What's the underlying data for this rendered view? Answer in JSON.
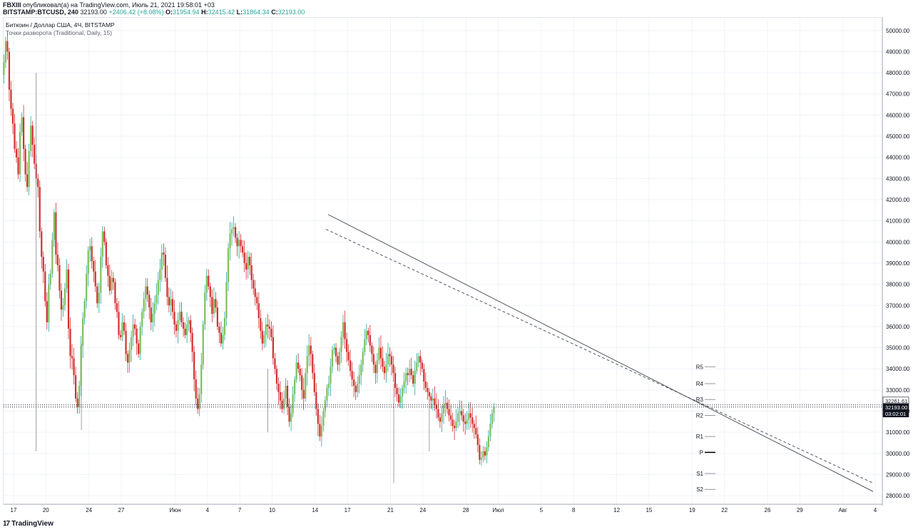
{
  "header": {
    "author": "FBXIII",
    "published_text": "опубликовал(а) на TradingView.com, Июль 21, 2021 19:58:01 +03",
    "symbol": "BITSTAMP:BTCUSD, 240",
    "last": "32193.00",
    "change": "+2406.42 (+8.08%)",
    "o_label": "O:",
    "o_value": "31954.94",
    "h_label": "H:",
    "h_value": "32415.42",
    "l_label": "L:",
    "l_value": "31864.34",
    "c_label": "C:",
    "c_value": "32193.00"
  },
  "legend": {
    "title": "Биткоин / Доллар США, 4Ч, BITSTAMP",
    "indicator": "Точки разворота (Traditional, Daily, 15)"
  },
  "footer": {
    "brand": "TradingView",
    "logo_glyph": "17"
  },
  "colors": {
    "up": "#26a69a",
    "up_body": "#7cbf5a",
    "down": "#d32f2f",
    "grid": "#f0f3fa",
    "line": "#131722"
  },
  "chart_data": {
    "type": "candlestick",
    "title": "Биткоин / Доллар США, 4Ч, BITSTAMP",
    "ylim": [
      27600,
      50600
    ],
    "y_ticks": [
      28000,
      29000,
      30000,
      31000,
      32000,
      33000,
      34000,
      35000,
      36000,
      37000,
      38000,
      39000,
      40000,
      41000,
      42000,
      43000,
      44000,
      45000,
      46000,
      47000,
      48000,
      49000,
      50000
    ],
    "y_tick_labels": [
      "28000.00",
      "29000.00",
      "30000.00",
      "31000.00",
      "32000.00",
      "33000.00",
      "34000.00",
      "35000.00",
      "36000.00",
      "37000.00",
      "38000.00",
      "39000.00",
      "40000.00",
      "41000.00",
      "42000.00",
      "43000.00",
      "44000.00",
      "45000.00",
      "46000.00",
      "47000.00",
      "48000.00",
      "49000.00",
      "50000.00"
    ],
    "x_ticks": [
      "17",
      "20",
      "24",
      "27",
      "Июн",
      "4",
      "7",
      "10",
      "14",
      "17",
      "21",
      "24",
      "28",
      "Июл",
      "5",
      "8",
      "12",
      "15",
      "19",
      "22",
      "26",
      "29",
      "Авг",
      "4"
    ],
    "x_tick_days": [
      0,
      3,
      7,
      10,
      15,
      18,
      21,
      24,
      28,
      31,
      35,
      38,
      42,
      45,
      49,
      52,
      56,
      59,
      63,
      66,
      70,
      73,
      77,
      80
    ],
    "last_price_label": "32193.00",
    "high_marker_label": "32261.61",
    "countdown_label": "03:02:01",
    "price_line": 32193,
    "pivots": [
      {
        "name": "R5",
        "value": 34100
      },
      {
        "name": "R4",
        "value": 33300
      },
      {
        "name": "R3",
        "value": 32550
      },
      {
        "name": "R2",
        "value": 31800
      },
      {
        "name": "R1",
        "value": 30800
      },
      {
        "name": "P",
        "value": 30050
      },
      {
        "name": "S1",
        "value": 29050
      },
      {
        "name": "S2",
        "value": 28300
      }
    ],
    "trendlines": [
      {
        "style": "solid",
        "from": {
          "day": 29.2,
          "price": 41300
        },
        "to": {
          "day": 79.8,
          "price": 28200
        }
      },
      {
        "style": "dashed",
        "from": {
          "day": 29.0,
          "price": 40600
        },
        "to": {
          "day": 79.8,
          "price": 28600
        }
      }
    ],
    "candles_start_day": -0.9,
    "candles_per_day": 6,
    "closes": [
      48500,
      49500,
      49000,
      47200,
      46300,
      45600,
      44400,
      44000,
      43200,
      45200,
      45900,
      44400,
      43200,
      42600,
      44300,
      45500,
      44600,
      43700,
      43000,
      42600,
      40500,
      39300,
      38600,
      37200,
      36200,
      38000,
      38500,
      40100,
      41400,
      39400,
      38900,
      37700,
      36800,
      37000,
      37800,
      38700,
      35900,
      34600,
      34500,
      33700,
      32600,
      32200,
      33200,
      35100,
      36400,
      37200,
      38500,
      39600,
      39800,
      39100,
      38600,
      37900,
      37100,
      37600,
      39300,
      40500,
      40000,
      38900,
      38400,
      37700,
      38300,
      38100,
      37100,
      36700,
      35600,
      35500,
      36200,
      35800,
      34700,
      34300,
      34900,
      35500,
      36100,
      35900,
      35200,
      34700,
      36000,
      36700,
      37300,
      37900,
      37500,
      36900,
      36200,
      36600,
      37100,
      37500,
      38200,
      38700,
      39500,
      39400,
      38300,
      37400,
      37000,
      37300,
      36700,
      36100,
      35800,
      36300,
      36700,
      36200,
      35900,
      35600,
      36100,
      36300,
      35700,
      34800,
      33500,
      32600,
      32100,
      32800,
      34200,
      36100,
      37600,
      38400,
      37900,
      37400,
      36600,
      37300,
      36900,
      36000,
      35700,
      35200,
      35600,
      36400,
      38100,
      39700,
      40400,
      40600,
      40700,
      40200,
      39800,
      40100,
      39800,
      39500,
      39000,
      38700,
      39300,
      38900,
      38200,
      37800,
      37400,
      37100,
      36400,
      35800,
      35200,
      35600,
      36100,
      36000,
      35900,
      35500,
      34500,
      34000,
      33300,
      32900,
      32500,
      32100,
      32600,
      33200,
      32200,
      31500,
      31900,
      32800,
      33500,
      34300,
      34000,
      33700,
      33000,
      32600,
      33800,
      34600,
      35100,
      34700,
      33800,
      32900,
      32100,
      31400,
      30800,
      31300,
      32000,
      32500,
      33100,
      33300,
      34100,
      34900,
      35000,
      34600,
      34200,
      34800,
      35500,
      36200,
      35400,
      34800,
      34400,
      33900,
      33500,
      33200,
      32900,
      33300,
      33700,
      34200,
      34800,
      35400,
      35800,
      35600,
      35100,
      34700,
      34200,
      33800,
      34400,
      35000,
      34500,
      34100,
      33800,
      34200,
      34700,
      34600,
      34200,
      33800,
      33100,
      32800,
      32400,
      32700,
      33100,
      33400,
      33800,
      33700,
      34000,
      33700,
      33300,
      33900,
      34300,
      34600,
      34300,
      34000,
      33400,
      33100,
      32900,
      32700,
      32500,
      32600,
      32300,
      32100,
      31700,
      31500,
      31900,
      32300,
      32400,
      32100,
      31800,
      31600,
      31300,
      31200,
      31500,
      31900,
      32000,
      31800,
      31500,
      31400,
      31600,
      31900,
      31700,
      31400,
      31200,
      30900,
      30400,
      29700,
      29800,
      30100,
      29900,
      30300,
      30800,
      31400,
      31900,
      32193
    ]
  }
}
